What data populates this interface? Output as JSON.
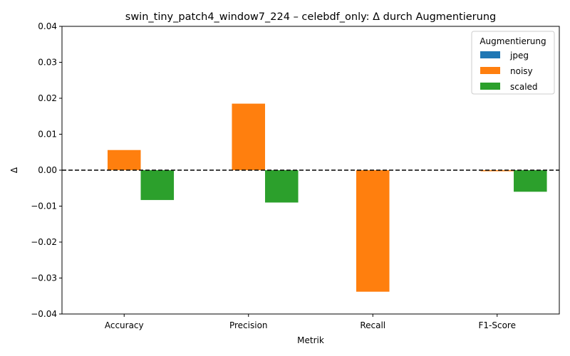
{
  "chart_data": {
    "type": "bar",
    "title": "swin_tiny_patch4_window7_224 – celebdf_only: Δ durch Augmentierung",
    "xlabel": "Metrik",
    "ylabel": "Δ",
    "ylim": [
      -0.04,
      0.04
    ],
    "yticks": [
      -0.04,
      -0.03,
      -0.02,
      -0.01,
      0.0,
      0.01,
      0.02,
      0.03,
      0.04
    ],
    "ytick_labels": [
      "−0.04",
      "−0.03",
      "−0.02",
      "−0.01",
      "0.00",
      "0.01",
      "0.02",
      "0.03",
      "0.04"
    ],
    "categories": [
      "Accuracy",
      "Precision",
      "Recall",
      "F1-Score"
    ],
    "legend": {
      "title": "Augmentierung",
      "position": "top-right"
    },
    "reference_line": {
      "y": 0,
      "style": "dashed"
    },
    "grid": false,
    "series": [
      {
        "name": "jpeg",
        "color": "#1f77b4",
        "values": [
          0.0,
          0.0,
          0.0,
          0.0
        ]
      },
      {
        "name": "noisy",
        "color": "#ff7f0e",
        "values": [
          0.0056,
          0.0185,
          -0.0338,
          -0.0003
        ]
      },
      {
        "name": "scaled",
        "color": "#2ca02c",
        "values": [
          -0.0083,
          -0.009,
          0.0,
          -0.006
        ]
      }
    ]
  }
}
